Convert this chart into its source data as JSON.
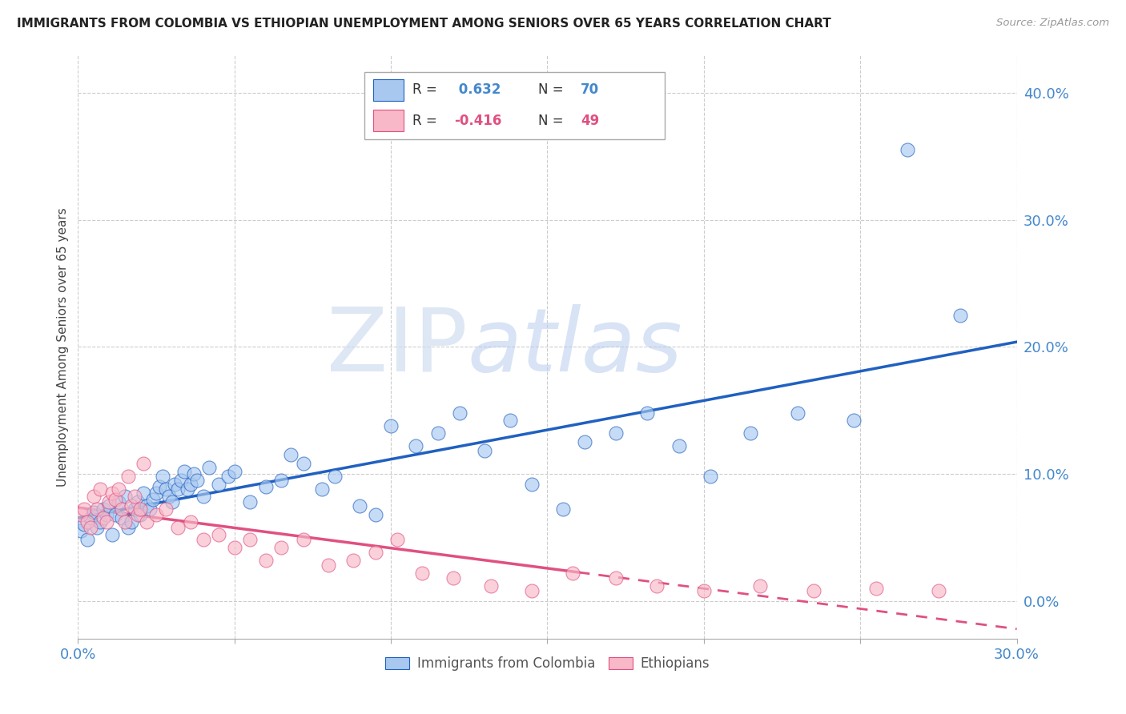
{
  "title": "IMMIGRANTS FROM COLOMBIA VS ETHIOPIAN UNEMPLOYMENT AMONG SENIORS OVER 65 YEARS CORRELATION CHART",
  "source": "Source: ZipAtlas.com",
  "ylabel": "Unemployment Among Seniors over 65 years",
  "legend_labels": [
    "Immigrants from Colombia",
    "Ethiopians"
  ],
  "R_colombia": 0.632,
  "N_colombia": 70,
  "R_ethiopia": -0.416,
  "N_ethiopia": 49,
  "xlim": [
    0.0,
    0.3
  ],
  "ylim": [
    -0.03,
    0.43
  ],
  "colombia_color": "#a8c8f0",
  "ethiopia_color": "#f8b8c8",
  "colombia_line_color": "#2060c0",
  "ethiopia_line_color": "#e05080",
  "tick_color": "#4488cc",
  "grid_color": "#cccccc",
  "watermark_zip": "ZIP",
  "watermark_atlas": "atlas",
  "colombia_x": [
    0.001,
    0.002,
    0.003,
    0.004,
    0.005,
    0.006,
    0.007,
    0.008,
    0.009,
    0.01,
    0.011,
    0.012,
    0.013,
    0.014,
    0.015,
    0.016,
    0.017,
    0.018,
    0.019,
    0.02,
    0.021,
    0.022,
    0.023,
    0.024,
    0.025,
    0.026,
    0.027,
    0.028,
    0.029,
    0.03,
    0.031,
    0.032,
    0.033,
    0.034,
    0.035,
    0.036,
    0.037,
    0.038,
    0.04,
    0.042,
    0.045,
    0.048,
    0.05,
    0.055,
    0.06,
    0.065,
    0.068,
    0.072,
    0.078,
    0.082,
    0.09,
    0.095,
    0.1,
    0.108,
    0.115,
    0.122,
    0.13,
    0.138,
    0.145,
    0.155,
    0.162,
    0.172,
    0.182,
    0.192,
    0.202,
    0.215,
    0.23,
    0.248,
    0.265,
    0.282
  ],
  "colombia_y": [
    0.055,
    0.06,
    0.048,
    0.065,
    0.07,
    0.058,
    0.062,
    0.072,
    0.068,
    0.075,
    0.052,
    0.068,
    0.078,
    0.065,
    0.082,
    0.058,
    0.062,
    0.072,
    0.078,
    0.068,
    0.085,
    0.075,
    0.072,
    0.08,
    0.085,
    0.09,
    0.098,
    0.088,
    0.082,
    0.078,
    0.092,
    0.088,
    0.095,
    0.102,
    0.088,
    0.092,
    0.1,
    0.095,
    0.082,
    0.105,
    0.092,
    0.098,
    0.102,
    0.078,
    0.09,
    0.095,
    0.115,
    0.108,
    0.088,
    0.098,
    0.075,
    0.068,
    0.138,
    0.122,
    0.132,
    0.148,
    0.118,
    0.142,
    0.092,
    0.072,
    0.125,
    0.132,
    0.148,
    0.122,
    0.098,
    0.132,
    0.148,
    0.142,
    0.355,
    0.225
  ],
  "ethiopia_x": [
    0.001,
    0.002,
    0.003,
    0.004,
    0.005,
    0.006,
    0.007,
    0.008,
    0.009,
    0.01,
    0.011,
    0.012,
    0.013,
    0.014,
    0.015,
    0.016,
    0.017,
    0.018,
    0.019,
    0.02,
    0.021,
    0.022,
    0.025,
    0.028,
    0.032,
    0.036,
    0.04,
    0.045,
    0.05,
    0.055,
    0.06,
    0.065,
    0.072,
    0.08,
    0.088,
    0.095,
    0.102,
    0.11,
    0.12,
    0.132,
    0.145,
    0.158,
    0.172,
    0.185,
    0.2,
    0.218,
    0.235,
    0.255,
    0.275
  ],
  "ethiopia_y": [
    0.068,
    0.072,
    0.062,
    0.058,
    0.082,
    0.072,
    0.088,
    0.065,
    0.062,
    0.078,
    0.085,
    0.08,
    0.088,
    0.072,
    0.062,
    0.098,
    0.075,
    0.082,
    0.068,
    0.072,
    0.108,
    0.062,
    0.068,
    0.072,
    0.058,
    0.062,
    0.048,
    0.052,
    0.042,
    0.048,
    0.032,
    0.042,
    0.048,
    0.028,
    0.032,
    0.038,
    0.048,
    0.022,
    0.018,
    0.012,
    0.008,
    0.022,
    0.018,
    0.012,
    0.008,
    0.012,
    0.008,
    0.01,
    0.008
  ],
  "yticks": [
    0.0,
    0.1,
    0.2,
    0.3,
    0.4
  ],
  "xtick_labels_show": [
    "0.0%",
    "30.0%"
  ],
  "xtick_labels_show_vals": [
    0.0,
    0.3
  ]
}
